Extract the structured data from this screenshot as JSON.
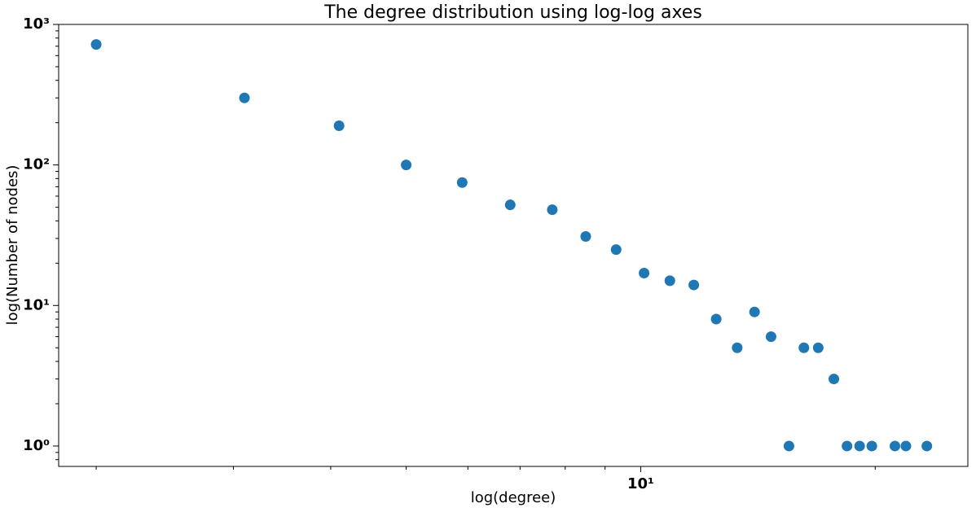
{
  "chart_data": {
    "type": "scatter",
    "title": "The degree distribution using log-log axes",
    "x_label": "log(degree)",
    "y_label": "log(Number of nodes)",
    "x_scale": "log",
    "y_scale": "log",
    "color": "#1f77b4",
    "x": [
      2,
      3.1,
      4.1,
      5,
      5.9,
      6.8,
      7.7,
      8.5,
      9.3,
      10.1,
      10.9,
      11.7,
      12.5,
      13.3,
      14,
      14.7,
      15.5,
      16.2,
      16.9,
      17.7,
      18.4,
      19.1,
      19.8,
      21.2,
      21.9,
      23.3
    ],
    "values": [
      720,
      300,
      190,
      100,
      75,
      52,
      48,
      31,
      25,
      17,
      15,
      14,
      8,
      5,
      9,
      6,
      1,
      5,
      5,
      3,
      1,
      1,
      1,
      1,
      1,
      1
    ],
    "xlim": [
      1.79,
      26.3
    ],
    "ylim": [
      0.716,
      1000
    ],
    "xticks": [
      {
        "value": 10,
        "label": "10¹"
      }
    ],
    "yticks": [
      {
        "value": 1,
        "label": "10⁰"
      },
      {
        "value": 10,
        "label": "10¹"
      },
      {
        "value": 100,
        "label": "10²"
      },
      {
        "value": 1000,
        "label": "10³"
      }
    ]
  }
}
